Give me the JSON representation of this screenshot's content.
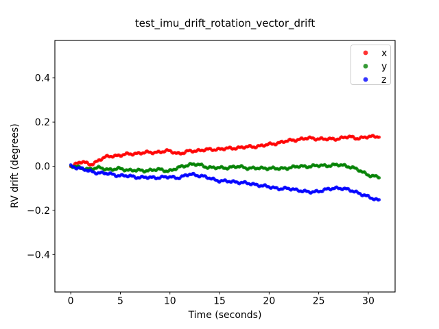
{
  "chart_data": {
    "type": "scatter",
    "title": "test_imu_drift_rotation_vector_drift",
    "xlabel": "Time (seconds)",
    "ylabel": "RV drift (degrees)",
    "xlim": [
      -1.6,
      32.7
    ],
    "ylim": [
      -0.57,
      0.57
    ],
    "xticks": {
      "values": [
        0,
        5,
        10,
        15,
        20,
        25,
        30
      ],
      "labels": [
        "0",
        "5",
        "10",
        "15",
        "20",
        "25",
        "30"
      ]
    },
    "yticks": {
      "values": [
        -0.4,
        -0.2,
        0.0,
        0.2,
        0.4
      ],
      "labels": [
        "−0.4",
        "−0.2",
        "0.0",
        "0.2",
        "0.4"
      ]
    },
    "grid": false,
    "legend": {
      "position": "upper right",
      "entries": [
        "x",
        "y",
        "z"
      ]
    },
    "values_unit": "degrees",
    "t_start": 0,
    "t_end": 31.1,
    "anchor_times_seconds": [
      0,
      1,
      2,
      3,
      4,
      5,
      6,
      7,
      8,
      9,
      10,
      11,
      12,
      13,
      14,
      15,
      16,
      17,
      18,
      19,
      20,
      21,
      22,
      23,
      24,
      25,
      26,
      27,
      28,
      29,
      30,
      31
    ],
    "series": [
      {
        "name": "x",
        "color": "#ff0000",
        "values": [
          0.0,
          0.02,
          0.008,
          0.032,
          0.045,
          0.05,
          0.055,
          0.06,
          0.062,
          0.065,
          0.068,
          0.058,
          0.068,
          0.072,
          0.075,
          0.078,
          0.08,
          0.085,
          0.087,
          0.092,
          0.098,
          0.107,
          0.115,
          0.122,
          0.126,
          0.125,
          0.122,
          0.126,
          0.132,
          0.128,
          0.132,
          0.137
        ]
      },
      {
        "name": "y",
        "color": "#008000",
        "values": [
          0.0,
          -0.008,
          -0.012,
          -0.008,
          -0.015,
          -0.012,
          -0.018,
          -0.02,
          -0.018,
          -0.016,
          -0.02,
          -0.005,
          0.008,
          0.005,
          -0.005,
          -0.008,
          -0.005,
          -0.003,
          -0.008,
          -0.01,
          -0.008,
          -0.012,
          -0.006,
          -0.002,
          0.0,
          0.002,
          0.004,
          0.005,
          0.0,
          -0.018,
          -0.038,
          -0.05
        ]
      },
      {
        "name": "z",
        "color": "#0000ff",
        "values": [
          0.0,
          -0.01,
          -0.024,
          -0.03,
          -0.036,
          -0.042,
          -0.046,
          -0.05,
          -0.052,
          -0.05,
          -0.05,
          -0.05,
          -0.038,
          -0.042,
          -0.055,
          -0.065,
          -0.07,
          -0.072,
          -0.08,
          -0.085,
          -0.095,
          -0.1,
          -0.103,
          -0.108,
          -0.118,
          -0.112,
          -0.105,
          -0.098,
          -0.108,
          -0.12,
          -0.14,
          -0.152
        ]
      }
    ]
  }
}
